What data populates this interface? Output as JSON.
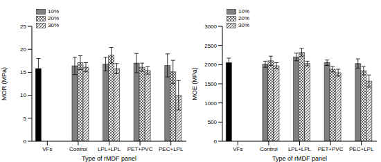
{
  "chart_data": [
    {
      "type": "bar",
      "y_label": "MOR (MPa)",
      "x_label": "Type of rMDF panel",
      "categories": [
        "VFs",
        "Control",
        "LPL+LPL",
        "PET+PVC",
        "PEC+LPL"
      ],
      "ylim": [
        0,
        25
      ],
      "yticks": [
        0,
        5,
        10,
        15,
        20,
        25
      ],
      "grid": false,
      "legend": "top-left",
      "series": [
        {
          "name": "VFs",
          "color": "#000000",
          "values": [
            15.8,
            null,
            null,
            null,
            null
          ],
          "errors": [
            2.2,
            null,
            null,
            null,
            null
          ]
        },
        {
          "name": "10%",
          "color": "#808080",
          "values": [
            null,
            16.4,
            16.8,
            17.0,
            16.5
          ],
          "errors": [
            null,
            1.9,
            1.5,
            2.1,
            2.5
          ]
        },
        {
          "name": "20%",
          "color": "#ffffff",
          "values": [
            null,
            17.1,
            18.7,
            16.1,
            15.1
          ],
          "errors": [
            null,
            1.5,
            1.7,
            0.9,
            2.5
          ]
        },
        {
          "name": "30%",
          "color": "#e0e0e0",
          "values": [
            null,
            16.1,
            15.8,
            15.4,
            10.0
          ],
          "errors": [
            null,
            1.0,
            1.1,
            0.8,
            3.2
          ]
        }
      ]
    },
    {
      "type": "bar",
      "y_label": "MOE (MPa)",
      "x_label": "Type of rMDF panel",
      "categories": [
        "VFs",
        "Control",
        "LPL+LPL",
        "PET+PVC",
        "PEC+LPL"
      ],
      "ylim": [
        0,
        3000
      ],
      "yticks": [
        0,
        500,
        1000,
        1500,
        2000,
        2500,
        3000
      ],
      "grid": false,
      "legend": "top-left",
      "series": [
        {
          "name": "VFs",
          "color": "#000000",
          "values": [
            2050,
            null,
            null,
            null,
            null
          ],
          "errors": [
            120,
            null,
            null,
            null,
            null
          ]
        },
        {
          "name": "10%",
          "color": "#808080",
          "values": [
            null,
            2010,
            2200,
            2050,
            2030
          ],
          "errors": [
            null,
            80,
            100,
            70,
            120
          ]
        },
        {
          "name": "20%",
          "color": "#ffffff",
          "values": [
            null,
            2100,
            2320,
            1880,
            1840
          ],
          "errors": [
            null,
            120,
            100,
            70,
            110
          ]
        },
        {
          "name": "30%",
          "color": "#e0e0e0",
          "values": [
            null,
            1970,
            2030,
            1790,
            1570
          ],
          "errors": [
            null,
            80,
            60,
            90,
            160
          ]
        }
      ]
    }
  ]
}
